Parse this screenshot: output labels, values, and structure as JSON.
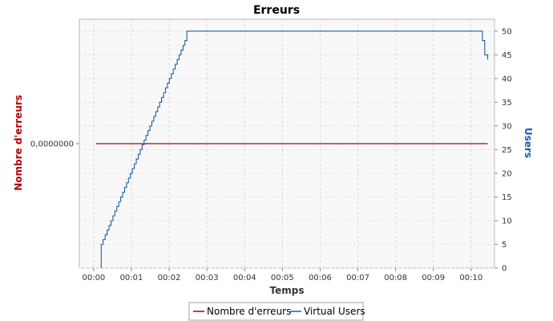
{
  "chart_data": {
    "type": "line",
    "title": "Erreurs",
    "xlabel": "Temps",
    "ylabel_left": "Nombre d'erreurs",
    "ylabel_right": "Users",
    "x_ticks": [
      "00:00",
      "00:01",
      "00:02",
      "00:03",
      "00:04",
      "00:05",
      "00:06",
      "00:07",
      "00:08",
      "00:09",
      "00:10"
    ],
    "x_range_minutes": [
      -0.38,
      10.62
    ],
    "left_axis": {
      "tick_label": "0,0000000",
      "tick_value": 0,
      "ylim": [
        -1,
        1
      ]
    },
    "right_axis": {
      "ticks": [
        0,
        5,
        10,
        15,
        20,
        25,
        30,
        35,
        40,
        45,
        50
      ],
      "ylim": [
        0,
        52.5
      ]
    },
    "grid": true,
    "legend_position": "bottom",
    "series": [
      {
        "name": "Nombre d'erreurs",
        "axis": "left",
        "color": "#b00000",
        "x_minutes": [
          0.06,
          10.44
        ],
        "values": [
          0,
          0
        ]
      },
      {
        "name": "Virtual Users",
        "axis": "right",
        "color": "#1a5fa8",
        "x_minutes": [
          0.2,
          0.2,
          2.47,
          2.47,
          10.28,
          10.3,
          10.36,
          10.44
        ],
        "values": [
          0,
          5,
          49,
          50,
          50,
          48,
          45,
          44
        ]
      }
    ]
  }
}
